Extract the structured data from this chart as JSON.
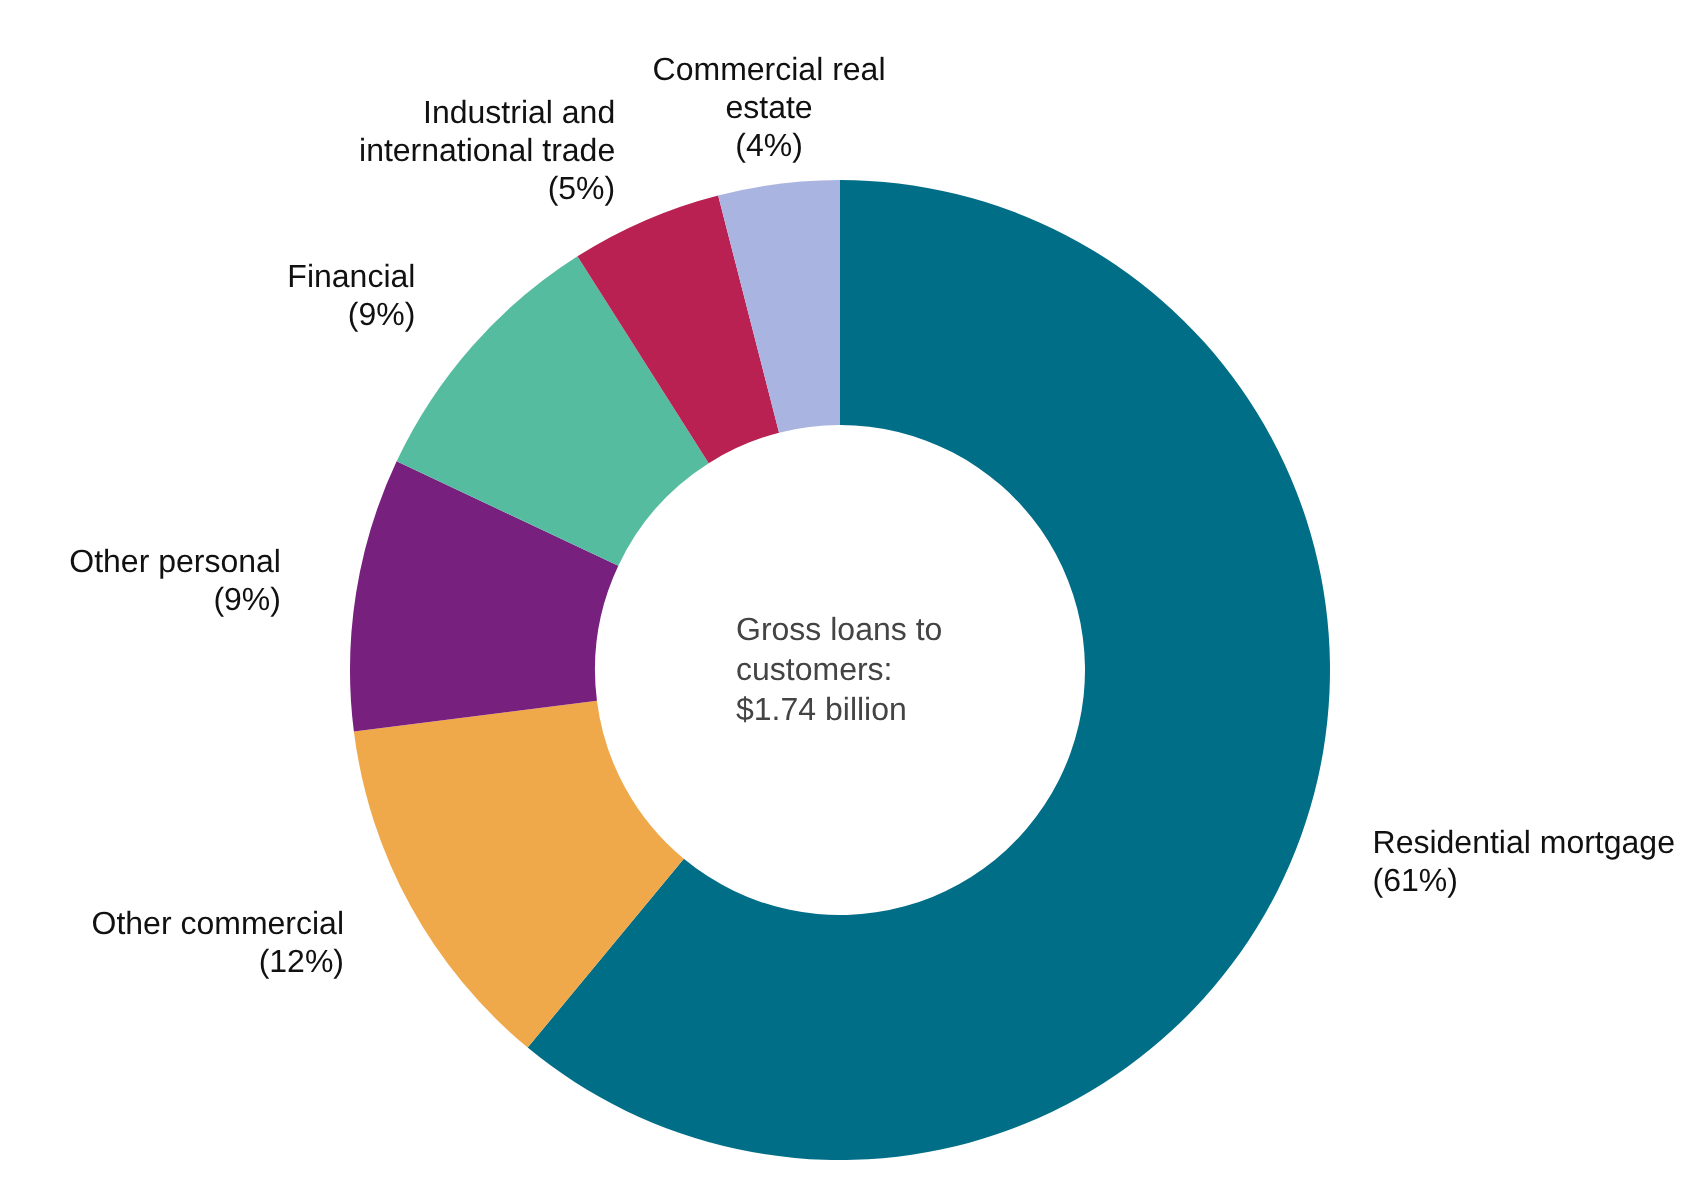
{
  "chart_data": {
    "type": "donut",
    "categories": [
      "Residential mortgage",
      "Other commercial",
      "Other personal",
      "Financial",
      "Industrial and international trade",
      "Commercial real estate"
    ],
    "values": [
      61,
      12,
      9,
      9,
      5,
      4
    ],
    "value_labels": [
      "(61%)",
      "(12%)",
      "(9%)",
      "(9%)",
      "(5%)",
      "(4%)"
    ],
    "colors": [
      "#006e87",
      "#f0a94a",
      "#77207e",
      "#56bca0",
      "#b92153",
      "#a9b4e0"
    ],
    "annotations": [
      "Gross loans to customers: $1.74 billion"
    ]
  }
}
